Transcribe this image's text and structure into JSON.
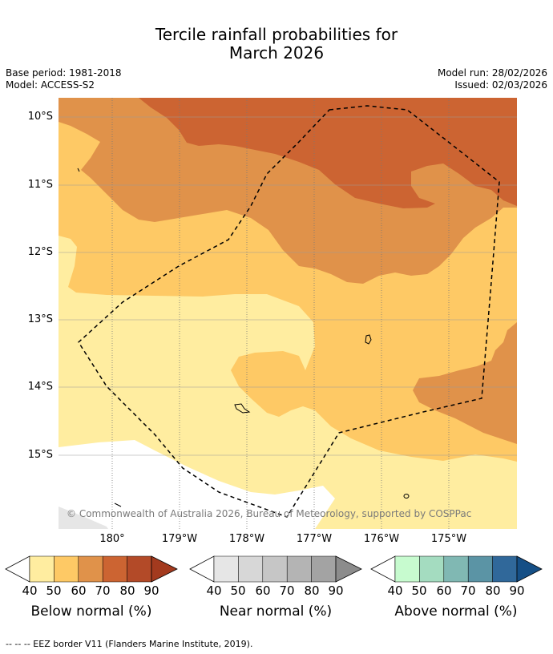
{
  "title_line1": "Tercile rainfall probabilities for",
  "title_line2": "March 2026",
  "base_period": "Base period: 1981-2018",
  "model": "Model: ACCESS-S2",
  "model_run": "Model run: 28/02/2026",
  "issued": "Issued: 02/03/2026",
  "lat_labels": [
    "10°S",
    "11°S",
    "12°S",
    "13°S",
    "14°S",
    "15°S"
  ],
  "lon_labels": [
    "180°",
    "179°W",
    "178°W",
    "177°W",
    "176°W",
    "175°W"
  ],
  "copyright": "© Commonwealth of Australia 2026, Bureau of Meteorology, supported by COSPPac",
  "colorbars": [
    {
      "title": "Below normal (%)",
      "ticks": [
        "40",
        "50",
        "60",
        "70",
        "80",
        "90"
      ],
      "colors": [
        "#ffeda0",
        "#fec965",
        "#e0924a",
        "#cc6432",
        "#b34a28",
        "#a33a1e"
      ]
    },
    {
      "title": "Near normal (%)",
      "ticks": [
        "40",
        "50",
        "60",
        "70",
        "80",
        "90"
      ],
      "colors": [
        "#e6e6e6",
        "#d7d7d7",
        "#c6c6c6",
        "#b4b4b4",
        "#a3a3a3",
        "#8c8c8c"
      ]
    },
    {
      "title": "Above normal (%)",
      "ticks": [
        "40",
        "50",
        "60",
        "70",
        "80",
        "90"
      ],
      "colors": [
        "#c7fbcf",
        "#a4dcc0",
        "#80b8b3",
        "#5b94a5",
        "#30689a",
        "#154f86"
      ]
    }
  ],
  "footnote": "-- -- -- EEZ border V11 (Flanders Marine Institute, 2019).",
  "colors": {
    "below_40": "#ffeda0",
    "below_50": "#fec965",
    "below_60": "#e0924a",
    "below_70": "#cc6432",
    "near_normal_grey": "#e6e6e6",
    "land_white": "#ffffff"
  }
}
